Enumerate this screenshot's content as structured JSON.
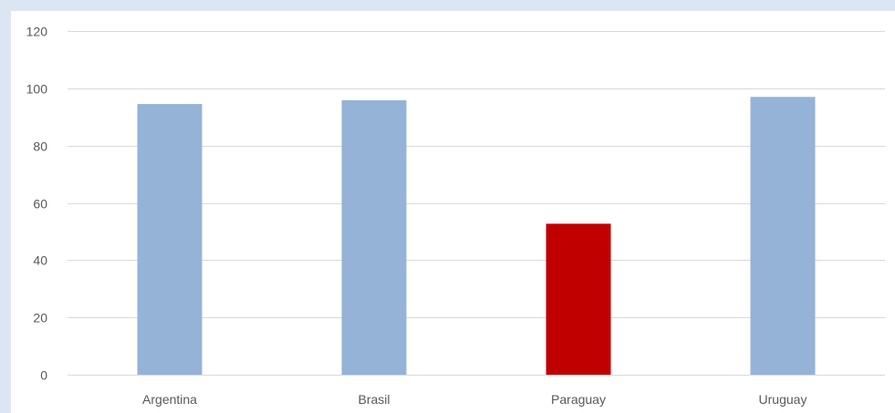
{
  "chart_data": {
    "type": "bar",
    "categories": [
      "Argentina",
      "Brasil",
      "Paraguay",
      "Uruguay"
    ],
    "values": [
      94.5,
      95.8,
      52.7,
      97.0
    ],
    "colors": [
      "#95b3d7",
      "#95b3d7",
      "#c00000",
      "#95b3d7"
    ],
    "title": "",
    "xlabel": "",
    "ylabel": "",
    "ylim": [
      0,
      120
    ],
    "yticks": [
      "0",
      "20",
      "40",
      "60",
      "80",
      "100",
      "120"
    ],
    "grid": true,
    "legend": "none"
  },
  "colors": {
    "background": "#dce6f2",
    "plot_background": "#ffffff",
    "gridline": "#d9d9d9",
    "axis_text": "#595959",
    "bar_default": "#95b3d7",
    "bar_highlight": "#c00000"
  }
}
